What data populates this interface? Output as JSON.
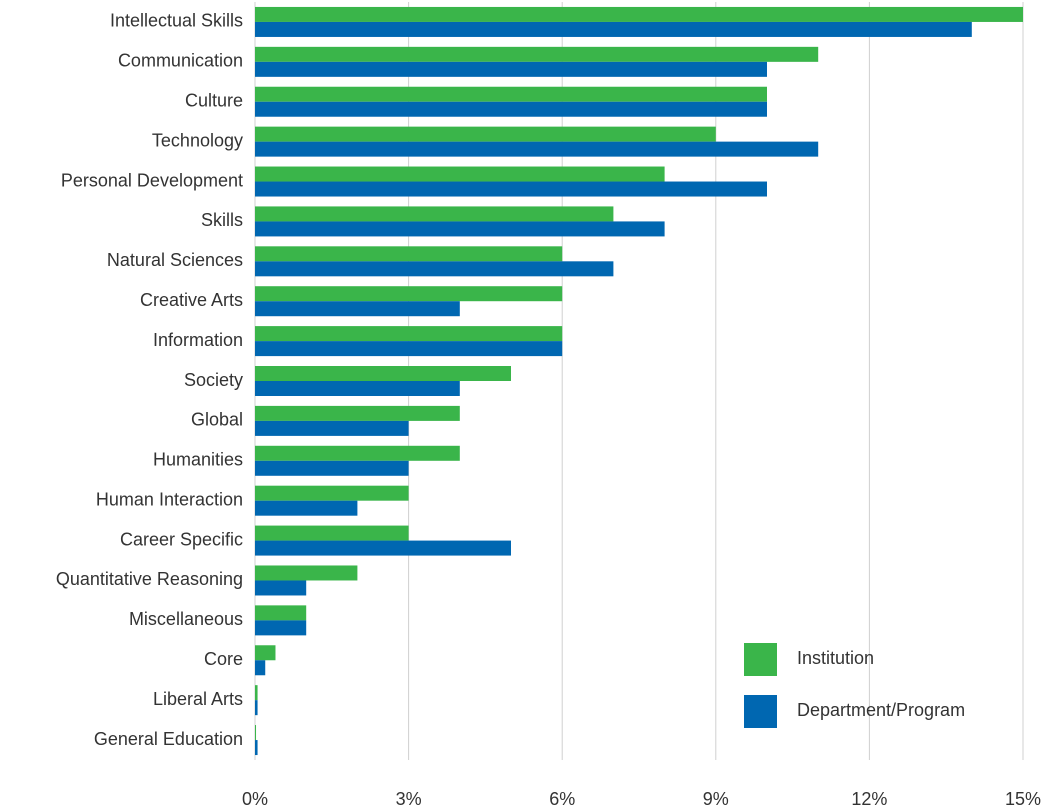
{
  "chart_data": {
    "type": "hbar",
    "categories": [
      "Intellectual Skills",
      "Communication",
      "Culture",
      "Technology",
      "Personal Development",
      "Skills",
      "Natural Sciences",
      "Creative Arts",
      "Information",
      "Society",
      "Global",
      "Humanities",
      "Human Interaction",
      "Career Specific",
      "Quantitative Reasoning",
      "Miscellaneous",
      "Core",
      "Liberal Arts",
      "General Education"
    ],
    "series": [
      {
        "name": "Institution",
        "color": "#3ab54a",
        "values": [
          15,
          11,
          10,
          9,
          8,
          7,
          6,
          6,
          6,
          5,
          4,
          4,
          3,
          3,
          2,
          1,
          0.4,
          0.05,
          0.02
        ]
      },
      {
        "name": "Department/Program",
        "color": "#0067b1",
        "values": [
          14,
          10,
          10,
          11,
          10,
          8,
          7,
          4,
          6,
          4,
          3,
          3,
          2,
          5,
          1,
          1,
          0.2,
          0.05,
          0.05
        ]
      }
    ],
    "xlim": [
      0,
      15
    ],
    "xticks": [
      {
        "value": 0,
        "label": "0%"
      },
      {
        "value": 3,
        "label": "3%"
      },
      {
        "value": 6,
        "label": "6%"
      },
      {
        "value": 9,
        "label": "9%"
      },
      {
        "value": 12,
        "label": "12%"
      },
      {
        "value": 15,
        "label": "15%"
      }
    ],
    "grid": true,
    "legend": "lower right"
  }
}
